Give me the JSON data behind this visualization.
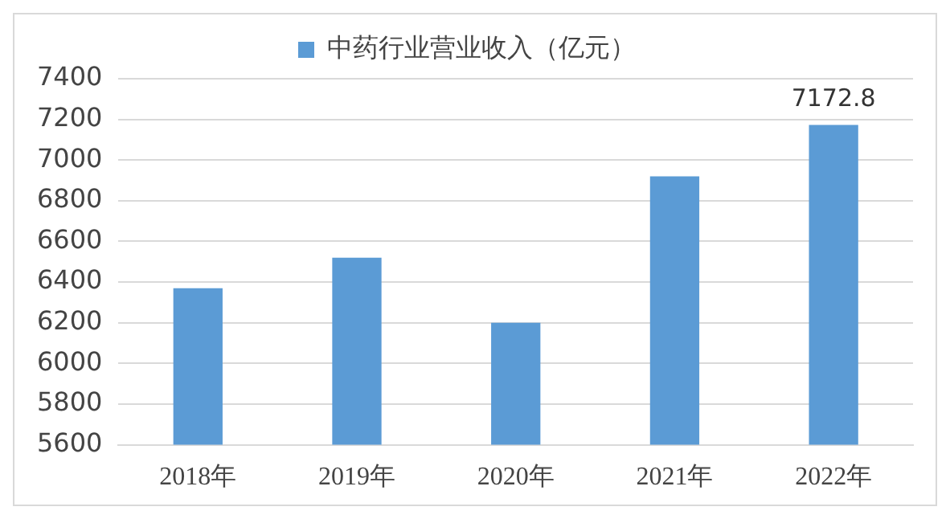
{
  "chart_data": {
    "type": "bar",
    "categories": [
      "2018年",
      "2019年",
      "2020年",
      "2021年",
      "2022年"
    ],
    "series": [
      {
        "name": "中药行业营业收入（亿元）",
        "color": "#5b9bd5",
        "values": [
          6370,
          6520,
          6200,
          6920,
          7172.8
        ],
        "value_labels": [
          null,
          null,
          null,
          null,
          "7172.8"
        ]
      }
    ],
    "ylim": [
      5600,
      7400
    ],
    "yticks": [
      5600,
      5800,
      6000,
      6200,
      6400,
      6600,
      6800,
      7000,
      7200,
      7400
    ],
    "grid": "y",
    "legend": "top"
  }
}
